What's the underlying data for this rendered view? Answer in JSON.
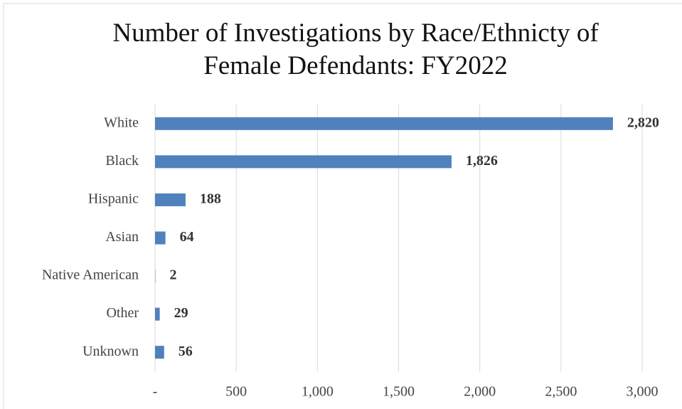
{
  "chart_data": {
    "type": "bar",
    "orientation": "horizontal",
    "title": "Number of Investigations by Race/Ethnicty of Female Defendants: FY2022",
    "categories": [
      "White",
      "Black",
      "Hispanic",
      "Asian",
      "Native American",
      "Other",
      "Unknown"
    ],
    "values": [
      2820,
      1826,
      188,
      64,
      2,
      29,
      56
    ],
    "value_labels": [
      "2,820",
      "1,826",
      "188",
      "64",
      "2",
      "29",
      "56"
    ],
    "color": "#4f81bd",
    "xlim": [
      0,
      3000
    ],
    "xticks": [
      {
        "value": 0,
        "label": "-"
      },
      500,
      {
        "value": 1000,
        "label": "1,000"
      },
      {
        "value": 1500,
        "label": "1,500"
      },
      {
        "value": 2000,
        "label": "2,000"
      },
      {
        "value": 2500,
        "label": "2,500"
      },
      {
        "value": 3000,
        "label": "3,000"
      }
    ],
    "grid": true
  }
}
